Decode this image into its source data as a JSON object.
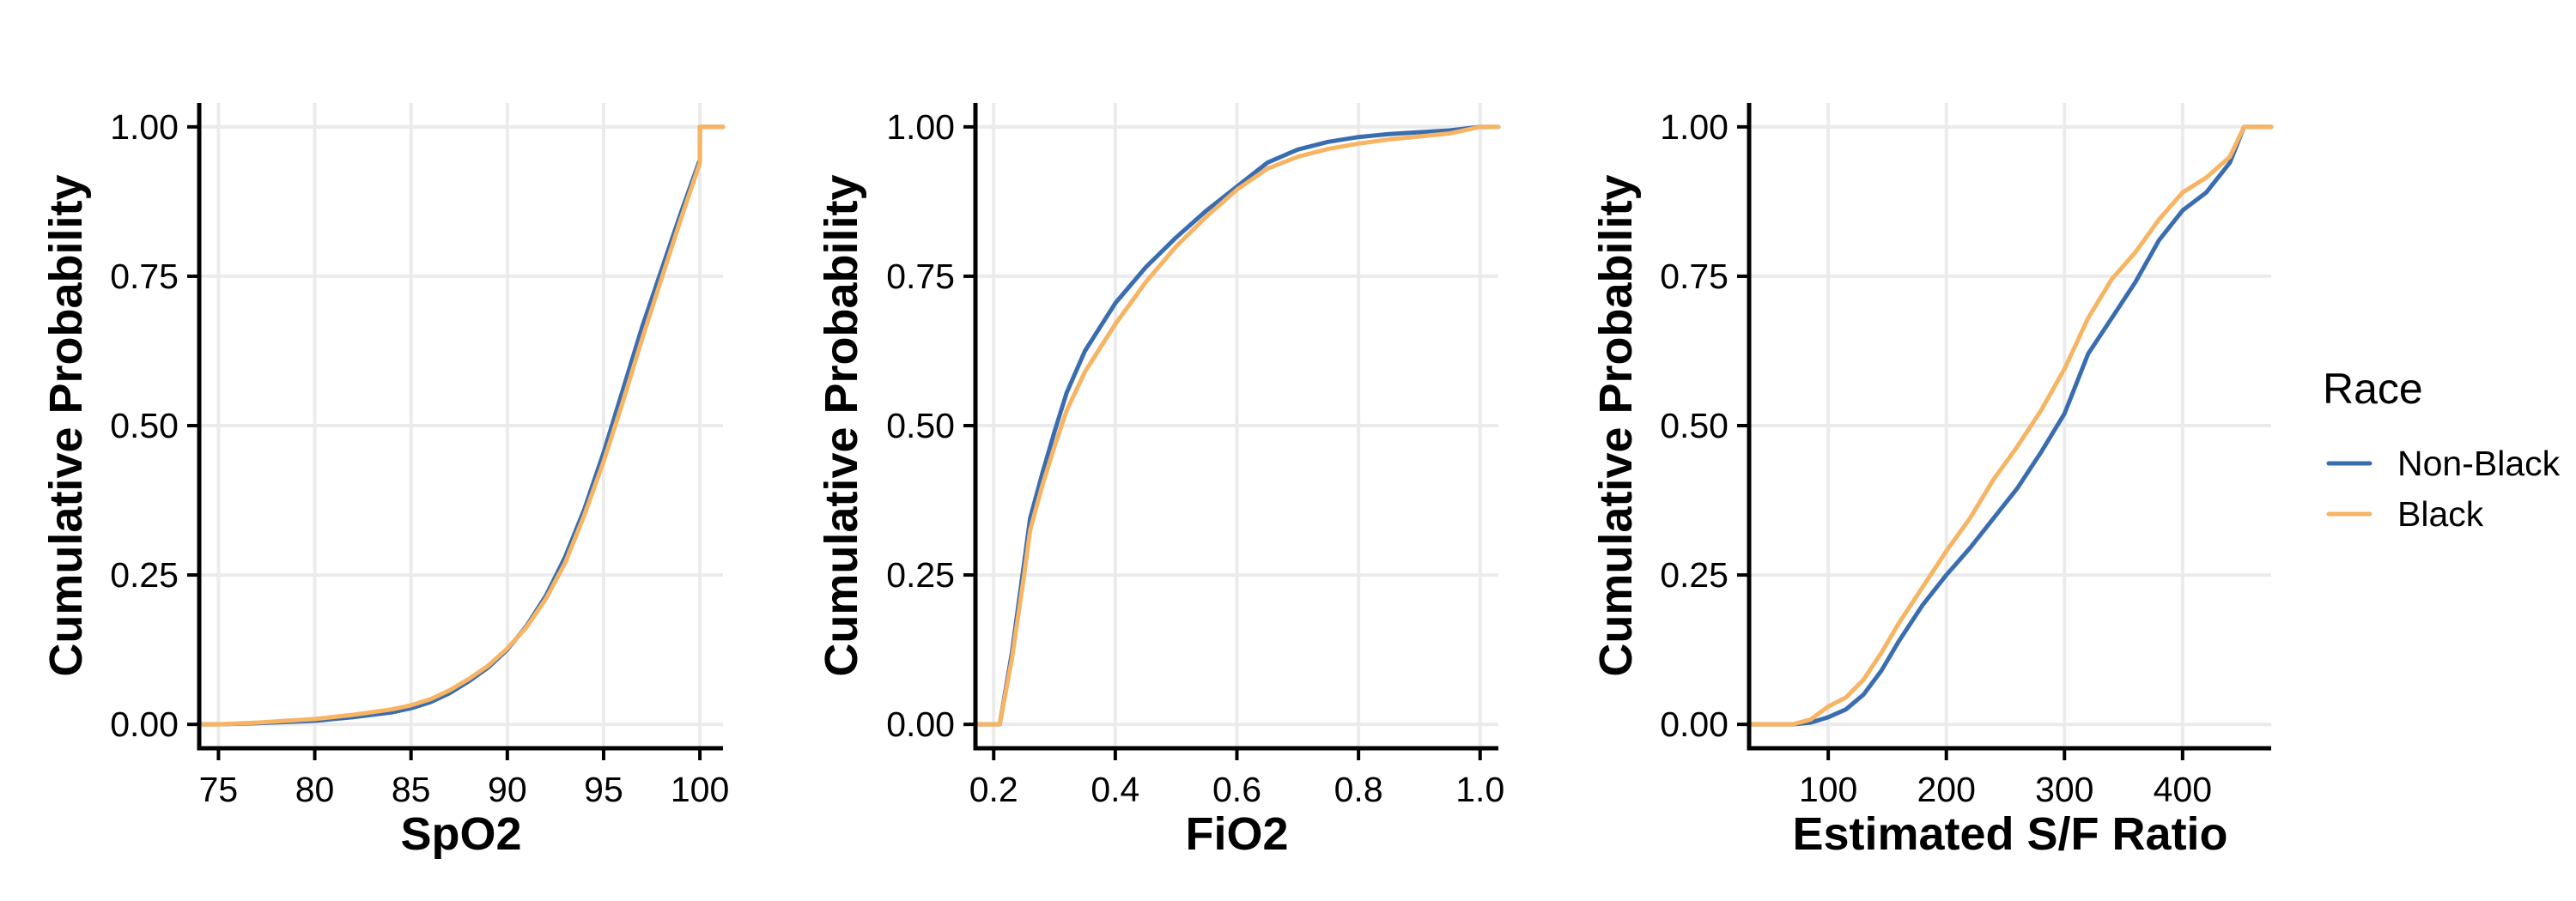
{
  "colors": {
    "non_black": "#3a6db0",
    "black": "#f7b462",
    "grid": "#ebebeb"
  },
  "legend": {
    "title": "Race",
    "placement": "right",
    "items": [
      {
        "label": "Non-Black",
        "color": "#3a6db0"
      },
      {
        "label": "Black",
        "color": "#f7b462"
      }
    ]
  },
  "chart_data": [
    {
      "type": "line",
      "xlabel": "SpO2",
      "ylabel": "Cumulative Probability",
      "xlim": [
        74,
        101.2
      ],
      "ylim": [
        -0.04,
        1.04
      ],
      "xticks": [
        75,
        80,
        85,
        90,
        95,
        100
      ],
      "xtick_labels": [
        "75",
        "80",
        "85",
        "90",
        "95",
        "100"
      ],
      "yticks": [
        0,
        0.25,
        0.5,
        0.75,
        1
      ],
      "ytick_labels": [
        "0.00",
        "0.25",
        "0.50",
        "0.75",
        "1.00"
      ],
      "grid": true,
      "series": [
        {
          "name": "Non-Black",
          "color": "#3a6db0",
          "x": [
            74,
            75,
            77,
            80,
            82,
            84,
            85,
            86,
            87,
            88,
            89,
            90,
            91,
            92,
            93,
            94,
            95,
            96,
            97,
            98,
            99,
            100,
            100,
            101.2
          ],
          "y": [
            0,
            0,
            0.002,
            0.006,
            0.012,
            0.02,
            0.027,
            0.037,
            0.052,
            0.072,
            0.095,
            0.125,
            0.165,
            0.215,
            0.28,
            0.36,
            0.455,
            0.56,
            0.665,
            0.76,
            0.855,
            0.945,
            1,
            1
          ]
        },
        {
          "name": "Black",
          "color": "#f7b462",
          "x": [
            74,
            75,
            77,
            80,
            82,
            84,
            85,
            86,
            87,
            88,
            89,
            90,
            91,
            92,
            93,
            94,
            95,
            96,
            97,
            98,
            99,
            100,
            100,
            101.2
          ],
          "y": [
            0,
            0,
            0.003,
            0.009,
            0.016,
            0.025,
            0.032,
            0.042,
            0.057,
            0.076,
            0.098,
            0.127,
            0.163,
            0.21,
            0.27,
            0.35,
            0.44,
            0.54,
            0.645,
            0.745,
            0.845,
            0.94,
            1,
            1
          ]
        }
      ]
    },
    {
      "type": "line",
      "xlabel": "FiO2",
      "ylabel": "Cumulative Probability",
      "xlim": [
        0.17,
        1.03
      ],
      "ylim": [
        -0.04,
        1.04
      ],
      "xticks": [
        0.2,
        0.4,
        0.6,
        0.8,
        1.0
      ],
      "xtick_labels": [
        "0.2",
        "0.4",
        "0.6",
        "0.8",
        "1.0"
      ],
      "yticks": [
        0,
        0.25,
        0.5,
        0.75,
        1
      ],
      "ytick_labels": [
        "0.00",
        "0.25",
        "0.50",
        "0.75",
        "1.00"
      ],
      "grid": true,
      "series": [
        {
          "name": "Non-Black",
          "color": "#3a6db0",
          "x": [
            0.17,
            0.21,
            0.21,
            0.23,
            0.25,
            0.26,
            0.28,
            0.3,
            0.32,
            0.35,
            0.4,
            0.45,
            0.5,
            0.55,
            0.6,
            0.65,
            0.7,
            0.75,
            0.8,
            0.85,
            0.9,
            0.95,
            1.0,
            1.03
          ],
          "y": [
            0,
            0,
            0,
            0.12,
            0.27,
            0.345,
            0.42,
            0.49,
            0.555,
            0.625,
            0.705,
            0.765,
            0.815,
            0.86,
            0.9,
            0.94,
            0.962,
            0.975,
            0.983,
            0.988,
            0.991,
            0.994,
            1,
            1
          ]
        },
        {
          "name": "Black",
          "color": "#f7b462",
          "x": [
            0.17,
            0.21,
            0.21,
            0.23,
            0.25,
            0.26,
            0.28,
            0.3,
            0.32,
            0.35,
            0.4,
            0.45,
            0.5,
            0.55,
            0.6,
            0.65,
            0.7,
            0.75,
            0.8,
            0.85,
            0.9,
            0.95,
            1.0,
            1.03
          ],
          "y": [
            0,
            0,
            0,
            0.11,
            0.25,
            0.325,
            0.4,
            0.465,
            0.525,
            0.59,
            0.67,
            0.74,
            0.8,
            0.85,
            0.895,
            0.93,
            0.95,
            0.963,
            0.972,
            0.979,
            0.984,
            0.989,
            1,
            1
          ]
        }
      ]
    },
    {
      "type": "line",
      "xlabel": "Estimated S/F Ratio",
      "ylabel": "Cumulative Probability",
      "xlim": [
        33,
        475
      ],
      "ylim": [
        -0.04,
        1.04
      ],
      "xticks": [
        100,
        200,
        300,
        400
      ],
      "xtick_labels": [
        "100",
        "200",
        "300",
        "400"
      ],
      "yticks": [
        0,
        0.25,
        0.5,
        0.75,
        1
      ],
      "ytick_labels": [
        "0.00",
        "0.25",
        "0.50",
        "0.75",
        "1.00"
      ],
      "grid": true,
      "series": [
        {
          "name": "Non-Black",
          "color": "#3a6db0",
          "x": [
            33,
            70,
            85,
            100,
            115,
            130,
            145,
            160,
            180,
            200,
            220,
            240,
            260,
            280,
            300,
            320,
            340,
            360,
            380,
            400,
            420,
            440,
            452,
            475
          ],
          "y": [
            0,
            0,
            0.003,
            0.012,
            0.025,
            0.05,
            0.09,
            0.14,
            0.2,
            0.25,
            0.295,
            0.345,
            0.395,
            0.455,
            0.52,
            0.62,
            0.68,
            0.74,
            0.81,
            0.86,
            0.89,
            0.94,
            1,
            1
          ]
        },
        {
          "name": "Black",
          "color": "#f7b462",
          "x": [
            33,
            70,
            85,
            100,
            115,
            130,
            145,
            160,
            180,
            200,
            220,
            240,
            260,
            280,
            300,
            320,
            340,
            360,
            380,
            400,
            420,
            440,
            452,
            475
          ],
          "y": [
            0,
            0,
            0.008,
            0.03,
            0.045,
            0.075,
            0.12,
            0.17,
            0.23,
            0.29,
            0.345,
            0.41,
            0.465,
            0.525,
            0.595,
            0.68,
            0.745,
            0.79,
            0.845,
            0.89,
            0.915,
            0.95,
            1,
            1
          ]
        }
      ]
    }
  ]
}
